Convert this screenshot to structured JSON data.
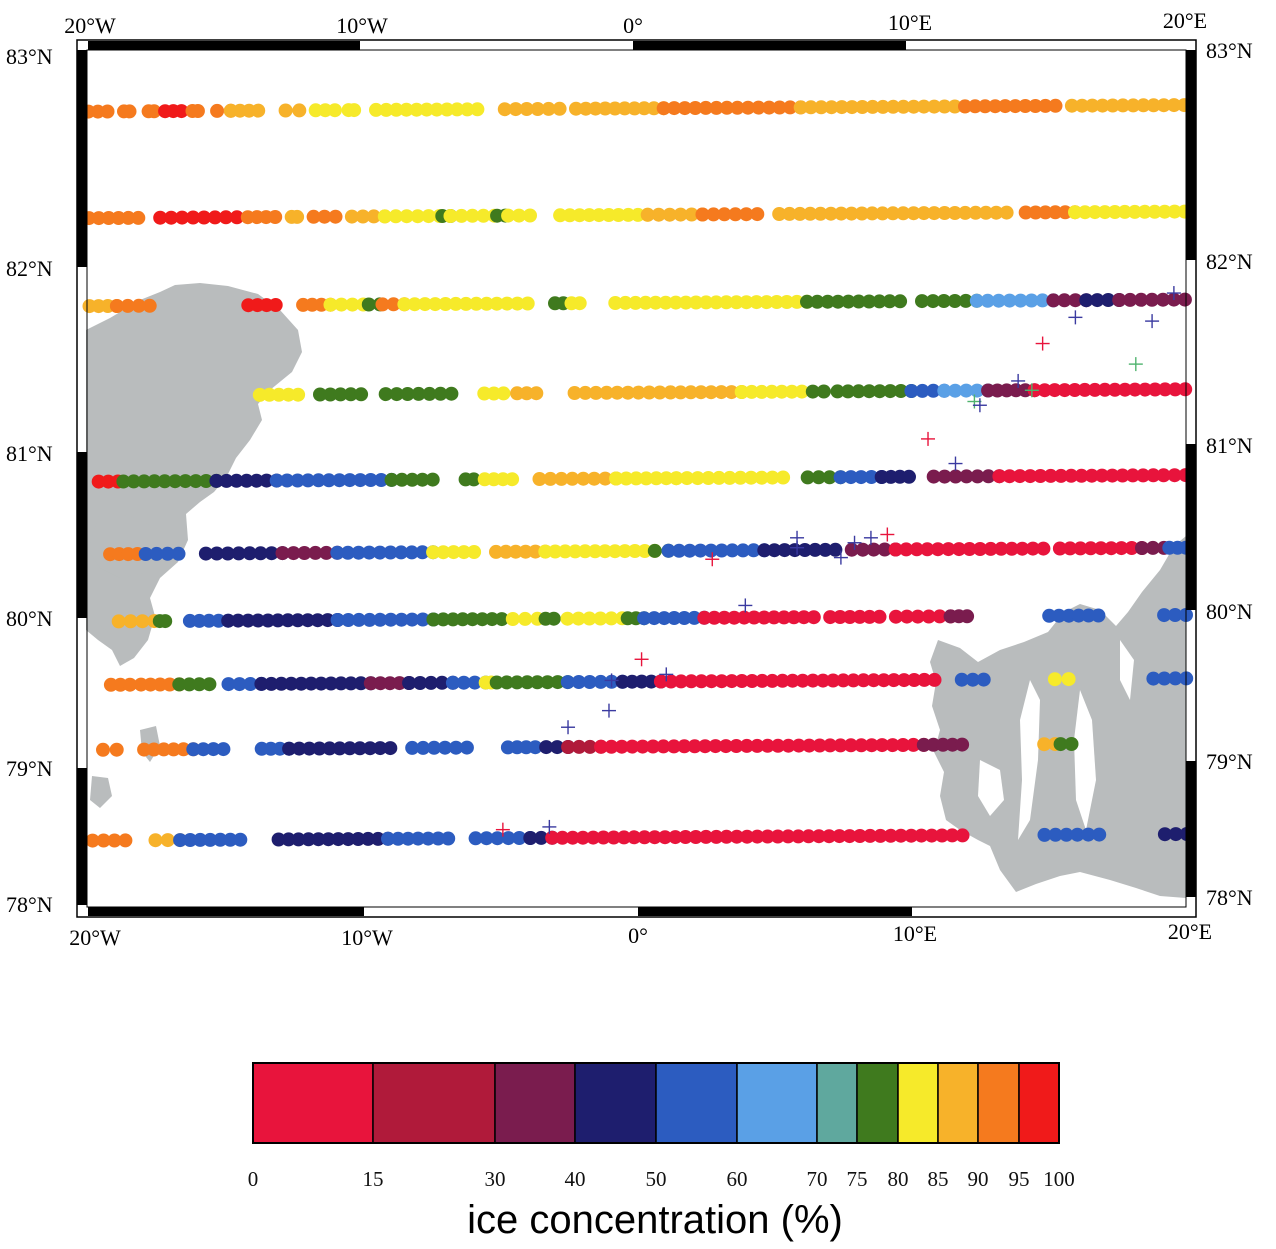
{
  "map": {
    "lon_labels": [
      "20°W",
      "10°W",
      "0°",
      "10°E",
      "20°E"
    ],
    "lat_labels": [
      "83°N",
      "82°N",
      "81°N",
      "80°N",
      "79°N",
      "78°N"
    ],
    "extent": {
      "lon": [
        -20,
        20
      ],
      "lat": [
        78,
        83
      ]
    }
  },
  "legend": {
    "title": "ice concentration (%)",
    "ticks": [
      "0",
      "15",
      "30",
      "40",
      "50",
      "60",
      "70",
      "75",
      "80",
      "85",
      "90",
      "95",
      "100"
    ],
    "bins": [
      0,
      15,
      30,
      40,
      50,
      60,
      70,
      75,
      80,
      85,
      90,
      95,
      100
    ],
    "colors": [
      "#e8143c",
      "#b01a3a",
      "#7a1c4e",
      "#1e1e6e",
      "#2c5cc0",
      "#5aa0e6",
      "#5fa89e",
      "#3f7a1e",
      "#f6ea2a",
      "#f7b22a",
      "#f57a1e",
      "#f01a1a"
    ]
  },
  "tracks": [
    {
      "lat": 82.72,
      "segments": [
        [
          -20,
          -19.3,
          "#f57a1e"
        ],
        [
          -18.7,
          -18.5,
          "#f57a1e"
        ],
        [
          -17.8,
          -17.6,
          "#f57a1e"
        ],
        [
          -17.2,
          -16.6,
          "#f01a1a"
        ],
        [
          -16.2,
          -16.0,
          "#f57a1e"
        ],
        [
          -15.3,
          -14.8,
          "#f57a1e"
        ],
        [
          -14.8,
          -13.8,
          "#f7b22a"
        ],
        [
          -12.8,
          -12.3,
          "#f7b22a"
        ],
        [
          -11.7,
          -11.0,
          "#f6ea2a"
        ],
        [
          -10.5,
          -10.3,
          "#f6ea2a"
        ],
        [
          -9.5,
          -5.8,
          "#f6ea2a"
        ],
        [
          -4.8,
          -4.0,
          "#f7b22a"
        ],
        [
          -3.6,
          -2.8,
          "#f7b22a"
        ],
        [
          -2.2,
          1.0,
          "#f7b22a"
        ],
        [
          1.0,
          6.0,
          "#f57a1e"
        ],
        [
          6.0,
          12.0,
          "#f7b22a"
        ],
        [
          12.0,
          15.3,
          "#f57a1e"
        ],
        [
          15.9,
          20,
          "#f7b22a"
        ]
      ]
    },
    {
      "lat": 82.22,
      "segments": [
        [
          -20,
          -18.2,
          "#f57a1e"
        ],
        [
          -17.4,
          -14.6,
          "#f01a1a"
        ],
        [
          -14.2,
          -13.2,
          "#f57a1e"
        ],
        [
          -12.6,
          -12.4,
          "#f7b22a"
        ],
        [
          -11.8,
          -11.0,
          "#f57a1e"
        ],
        [
          -10.4,
          -9.2,
          "#f7b22a"
        ],
        [
          -9.2,
          -7.2,
          "#f6ea2a"
        ],
        [
          -7.1,
          -6.8,
          "#3f7a1e"
        ],
        [
          -6.8,
          -5.2,
          "#f6ea2a"
        ],
        [
          -5.1,
          -4.8,
          "#3f7a1e"
        ],
        [
          -4.7,
          -3.9,
          "#f6ea2a"
        ],
        [
          -2.8,
          0.4,
          "#f6ea2a"
        ],
        [
          0.4,
          2.4,
          "#f7b22a"
        ],
        [
          2.4,
          4.4,
          "#f57a1e"
        ],
        [
          5.2,
          13.5,
          "#f7b22a"
        ],
        [
          14.2,
          16.0,
          "#f57a1e"
        ],
        [
          16.0,
          20,
          "#f6ea2a"
        ]
      ]
    },
    {
      "lat": 81.78,
      "segments": [
        [
          -20,
          -19.0,
          "#f7b22a"
        ],
        [
          -19.0,
          -17.8,
          "#f57a1e"
        ],
        [
          -14.2,
          -13.2,
          "#f01a1a"
        ],
        [
          -12.2,
          -11.2,
          "#f57a1e"
        ],
        [
          -11.2,
          -10.0,
          "#f6ea2a"
        ],
        [
          -9.8,
          -9.4,
          "#3f7a1e"
        ],
        [
          -9.3,
          -8.5,
          "#f57a1e"
        ],
        [
          -8.5,
          -4.0,
          "#f6ea2a"
        ],
        [
          -3.0,
          -2.7,
          "#3f7a1e"
        ],
        [
          -2.4,
          -2.1,
          "#f6ea2a"
        ],
        [
          -0.8,
          6.2,
          "#f6ea2a"
        ],
        [
          6.2,
          9.6,
          "#3f7a1e"
        ],
        [
          10.4,
          12.4,
          "#3f7a1e"
        ],
        [
          12.4,
          15.2,
          "#5aa0e6"
        ],
        [
          15.2,
          16.4,
          "#7a1c4e"
        ],
        [
          16.4,
          17.6,
          "#1e1e6e"
        ],
        [
          17.6,
          20,
          "#7a1c4e"
        ]
      ]
    },
    {
      "lat": 81.3,
      "segments": [
        [
          -13.8,
          -12.4,
          "#f6ea2a"
        ],
        [
          -11.6,
          -10.1,
          "#3f7a1e"
        ],
        [
          -9.2,
          -6.8,
          "#3f7a1e"
        ],
        [
          -5.6,
          -4.9,
          "#f6ea2a"
        ],
        [
          -4.4,
          -3.7,
          "#f7b22a"
        ],
        [
          -2.3,
          1.2,
          "#f7b22a"
        ],
        [
          1.2,
          3.8,
          "#f7b22a"
        ],
        [
          3.8,
          6.0,
          "#f6ea2a"
        ],
        [
          6.4,
          6.8,
          "#3f7a1e"
        ],
        [
          7.3,
          10.0,
          "#3f7a1e"
        ],
        [
          10.0,
          11.2,
          "#2c5cc0"
        ],
        [
          11.2,
          12.8,
          "#5aa0e6"
        ],
        [
          12.8,
          14.5,
          "#7a1c4e"
        ],
        [
          14.5,
          20,
          "#e8143c"
        ]
      ]
    },
    {
      "lat": 80.82,
      "segments": [
        [
          -19.7,
          -19.0,
          "#f01a1a"
        ],
        [
          -18.8,
          -15.4,
          "#3f7a1e"
        ],
        [
          -15.4,
          -13.2,
          "#1e1e6e"
        ],
        [
          -13.2,
          -9.0,
          "#2c5cc0"
        ],
        [
          -9.0,
          -7.5,
          "#3f7a1e"
        ],
        [
          -6.3,
          -6.0,
          "#3f7a1e"
        ],
        [
          -5.6,
          -4.6,
          "#f6ea2a"
        ],
        [
          -3.6,
          -0.8,
          "#f7b22a"
        ],
        [
          -0.8,
          1.4,
          "#f6ea2a"
        ],
        [
          1.4,
          5.3,
          "#f6ea2a"
        ],
        [
          6.2,
          7.4,
          "#3f7a1e"
        ],
        [
          7.4,
          8.9,
          "#2c5cc0"
        ],
        [
          8.9,
          9.9,
          "#1e1e6e"
        ],
        [
          10.8,
          13.2,
          "#7a1c4e"
        ],
        [
          13.2,
          19.2,
          "#e8143c"
        ],
        [
          19.6,
          20,
          "#e8143c"
        ]
      ]
    },
    {
      "lat": 80.38,
      "segments": [
        [
          -19.3,
          -18.3,
          "#f57a1e"
        ],
        [
          -18.0,
          -16.8,
          "#2c5cc0"
        ],
        [
          -15.8,
          -13.0,
          "#1e1e6e"
        ],
        [
          -13.0,
          -11.0,
          "#7a1c4e"
        ],
        [
          -11.0,
          -7.5,
          "#2c5cc0"
        ],
        [
          -7.5,
          -6.0,
          "#f6ea2a"
        ],
        [
          -5.2,
          -3.4,
          "#f7b22a"
        ],
        [
          -3.4,
          0.6,
          "#f6ea2a"
        ],
        [
          0.6,
          1.1,
          "#3f7a1e"
        ],
        [
          1.1,
          4.6,
          "#2c5cc0"
        ],
        [
          4.6,
          7.2,
          "#1e1e6e"
        ],
        [
          7.8,
          9.4,
          "#7a1c4e"
        ],
        [
          9.4,
          14.8,
          "#e8143c"
        ],
        [
          15.4,
          18.4,
          "#e8143c"
        ],
        [
          18.4,
          19.2,
          "#7a1c4e"
        ],
        [
          19.4,
          20,
          "#2c5cc0"
        ]
      ]
    },
    {
      "lat": 79.97,
      "segments": [
        [
          -19.0,
          -17.7,
          "#f7b22a"
        ],
        [
          -17.5,
          -17.3,
          "#3f7a1e"
        ],
        [
          -16.4,
          -15.0,
          "#2c5cc0"
        ],
        [
          -15.0,
          -11.0,
          "#1e1e6e"
        ],
        [
          -11.0,
          -7.5,
          "#2c5cc0"
        ],
        [
          -7.5,
          -5.0,
          "#3f7a1e"
        ],
        [
          -4.6,
          -3.7,
          "#f6ea2a"
        ],
        [
          -3.4,
          -3.1,
          "#3f7a1e"
        ],
        [
          -2.6,
          -0.6,
          "#f6ea2a"
        ],
        [
          -0.4,
          0.2,
          "#3f7a1e"
        ],
        [
          0.2,
          2.4,
          "#2c5cc0"
        ],
        [
          2.4,
          6.4,
          "#e8143c"
        ],
        [
          7.0,
          8.8,
          "#e8143c"
        ],
        [
          9.4,
          11.4,
          "#e8143c"
        ],
        [
          11.4,
          12.0,
          "#7a1c4e"
        ],
        [
          15.0,
          16.8,
          "#2c5cc0"
        ],
        [
          19.2,
          20,
          "#2c5cc0"
        ]
      ]
    },
    {
      "lat": 79.55,
      "segments": [
        [
          -19.3,
          -18.6,
          "#f57a1e"
        ],
        [
          -18.2,
          -16.8,
          "#f57a1e"
        ],
        [
          -16.8,
          -15.7,
          "#3f7a1e"
        ],
        [
          -15.0,
          -13.8,
          "#2c5cc0"
        ],
        [
          -13.8,
          -9.8,
          "#1e1e6e"
        ],
        [
          -9.8,
          -8.4,
          "#7a1c4e"
        ],
        [
          -8.4,
          -6.8,
          "#1e1e6e"
        ],
        [
          -6.8,
          -5.6,
          "#2c5cc0"
        ],
        [
          -5.6,
          -5.4,
          "#f6ea2a"
        ],
        [
          -5.2,
          -2.6,
          "#3f7a1e"
        ],
        [
          -2.6,
          -0.6,
          "#2c5cc0"
        ],
        [
          -0.6,
          0.8,
          "#1e1e6e"
        ],
        [
          0.8,
          10.8,
          "#e8143c"
        ],
        [
          11.8,
          12.6,
          "#2c5cc0"
        ],
        [
          15.2,
          15.7,
          "#f6ea2a"
        ],
        [
          18.8,
          20,
          "#2c5cc0"
        ]
      ]
    },
    {
      "lat": 79.12,
      "segments": [
        [
          -19.6,
          -19.1,
          "#f57a1e"
        ],
        [
          -18.1,
          -16.3,
          "#f57a1e"
        ],
        [
          -16.3,
          -15.2,
          "#2c5cc0"
        ],
        [
          -13.8,
          -12.8,
          "#2c5cc0"
        ],
        [
          -12.8,
          -9.1,
          "#1e1e6e"
        ],
        [
          -8.3,
          -6.3,
          "#2c5cc0"
        ],
        [
          -4.8,
          -3.8,
          "#2c5cc0"
        ],
        [
          -3.4,
          -2.6,
          "#1e1e6e"
        ],
        [
          -2.6,
          -1.4,
          "#b01a3a"
        ],
        [
          -1.4,
          10.4,
          "#e8143c"
        ],
        [
          10.4,
          11.8,
          "#7a1c4e"
        ],
        [
          14.8,
          15.2,
          "#f7b22a"
        ],
        [
          15.4,
          15.8,
          "#3f7a1e"
        ]
      ]
    },
    {
      "lat": 78.47,
      "segments": [
        [
          -20,
          -18.8,
          "#f57a1e"
        ],
        [
          -17.7,
          -16.8,
          "#f7b22a"
        ],
        [
          -16.8,
          -14.6,
          "#2c5cc0"
        ],
        [
          -13.2,
          -9.2,
          "#1e1e6e"
        ],
        [
          -9.2,
          -7.0,
          "#2c5cc0"
        ],
        [
          -6.0,
          -4.0,
          "#2c5cc0"
        ],
        [
          -4.0,
          -3.2,
          "#1e1e6e"
        ],
        [
          -3.2,
          11.8,
          "#e8143c"
        ],
        [
          14.8,
          16.8,
          "#2c5cc0"
        ],
        [
          19.2,
          20,
          "#1e1e6e"
        ]
      ]
    }
  ],
  "crosses": [
    [
      19.6,
      81.85,
      "#3a3aa0"
    ],
    [
      18.8,
      81.7,
      "#3a3aa0"
    ],
    [
      16.0,
      81.72,
      "#3a3aa0"
    ],
    [
      14.8,
      81.58,
      "#e8143c"
    ],
    [
      18.2,
      81.47,
      "#4fb36e"
    ],
    [
      13.9,
      81.38,
      "#3a3aa0"
    ],
    [
      14.4,
      81.33,
      "#4fb36e"
    ],
    [
      12.3,
      81.27,
      "#4fb36e"
    ],
    [
      12.5,
      81.25,
      "#3a3aa0"
    ],
    [
      10.6,
      81.07,
      "#e8143c"
    ],
    [
      11.6,
      80.93,
      "#3a3aa0"
    ],
    [
      5.8,
      80.48,
      "#3a3aa0"
    ],
    [
      5.8,
      80.42,
      "#3a3aa0"
    ],
    [
      7.9,
      80.45,
      "#3a3aa0"
    ],
    [
      8.5,
      80.48,
      "#3a3aa0"
    ],
    [
      9.1,
      80.5,
      "#e8143c"
    ],
    [
      7.4,
      80.36,
      "#3a3aa0"
    ],
    [
      2.7,
      80.35,
      "#e8143c"
    ],
    [
      3.9,
      80.07,
      "#3a3aa0"
    ],
    [
      0.1,
      79.72,
      "#e8143c"
    ],
    [
      1.0,
      79.62,
      "#3a3aa0"
    ],
    [
      -1.0,
      79.58,
      "#3a3aa0"
    ],
    [
      -1.1,
      79.38,
      "#3a3aa0"
    ],
    [
      -2.6,
      79.27,
      "#3a3aa0"
    ],
    [
      -3.3,
      78.57,
      "#3a3aa0"
    ],
    [
      -5.0,
      78.55,
      "#e8143c"
    ]
  ],
  "colors": {
    "land": "#b9bcbd",
    "frame": "#000000",
    "border": "#000000"
  }
}
